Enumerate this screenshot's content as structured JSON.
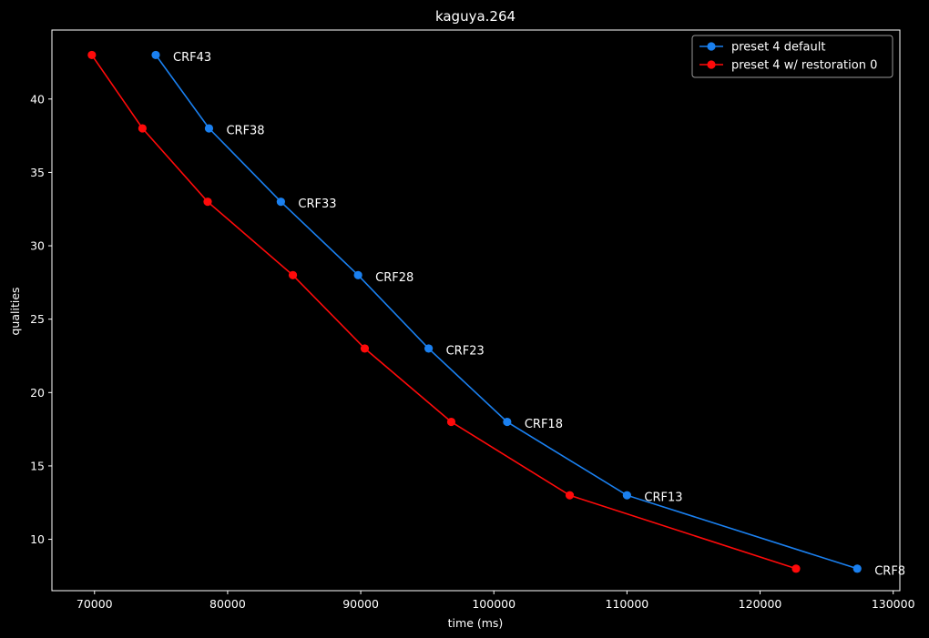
{
  "chart_data": {
    "type": "line",
    "title": "kaguya.264",
    "xlabel": "time (ms)",
    "ylabel": "qualities",
    "xlim": [
      66800,
      130500
    ],
    "ylim": [
      6.5,
      44.7
    ],
    "xticks": [
      70000,
      80000,
      90000,
      100000,
      110000,
      120000,
      130000
    ],
    "yticks": [
      10,
      15,
      20,
      25,
      30,
      35,
      40
    ],
    "grid": false,
    "legend_position": "top-right",
    "series": [
      {
        "name": "preset 4 default",
        "color": "#1a80f0",
        "points": [
          {
            "x": 74600,
            "y": 43
          },
          {
            "x": 78600,
            "y": 38
          },
          {
            "x": 84000,
            "y": 33
          },
          {
            "x": 89800,
            "y": 28
          },
          {
            "x": 95100,
            "y": 23
          },
          {
            "x": 101000,
            "y": 18
          },
          {
            "x": 110000,
            "y": 13
          },
          {
            "x": 127300,
            "y": 8
          }
        ]
      },
      {
        "name": "preset 4 w/ restoration 0",
        "color": "#ff0a0a",
        "points": [
          {
            "x": 69800,
            "y": 43
          },
          {
            "x": 73600,
            "y": 38
          },
          {
            "x": 78500,
            "y": 33
          },
          {
            "x": 84900,
            "y": 28
          },
          {
            "x": 90300,
            "y": 23
          },
          {
            "x": 96800,
            "y": 18
          },
          {
            "x": 105700,
            "y": 13
          },
          {
            "x": 122700,
            "y": 8
          }
        ]
      }
    ],
    "annotations": [
      {
        "text": "CRF43",
        "x": 74600,
        "y": 43
      },
      {
        "text": "CRF38",
        "x": 78600,
        "y": 38
      },
      {
        "text": "CRF33",
        "x": 84000,
        "y": 33
      },
      {
        "text": "CRF28",
        "x": 89800,
        "y": 28
      },
      {
        "text": "CRF23",
        "x": 95100,
        "y": 23
      },
      {
        "text": "CRF18",
        "x": 101000,
        "y": 18
      },
      {
        "text": "CRF13",
        "x": 110000,
        "y": 13
      },
      {
        "text": "CRF8",
        "x": 127300,
        "y": 8
      }
    ]
  }
}
